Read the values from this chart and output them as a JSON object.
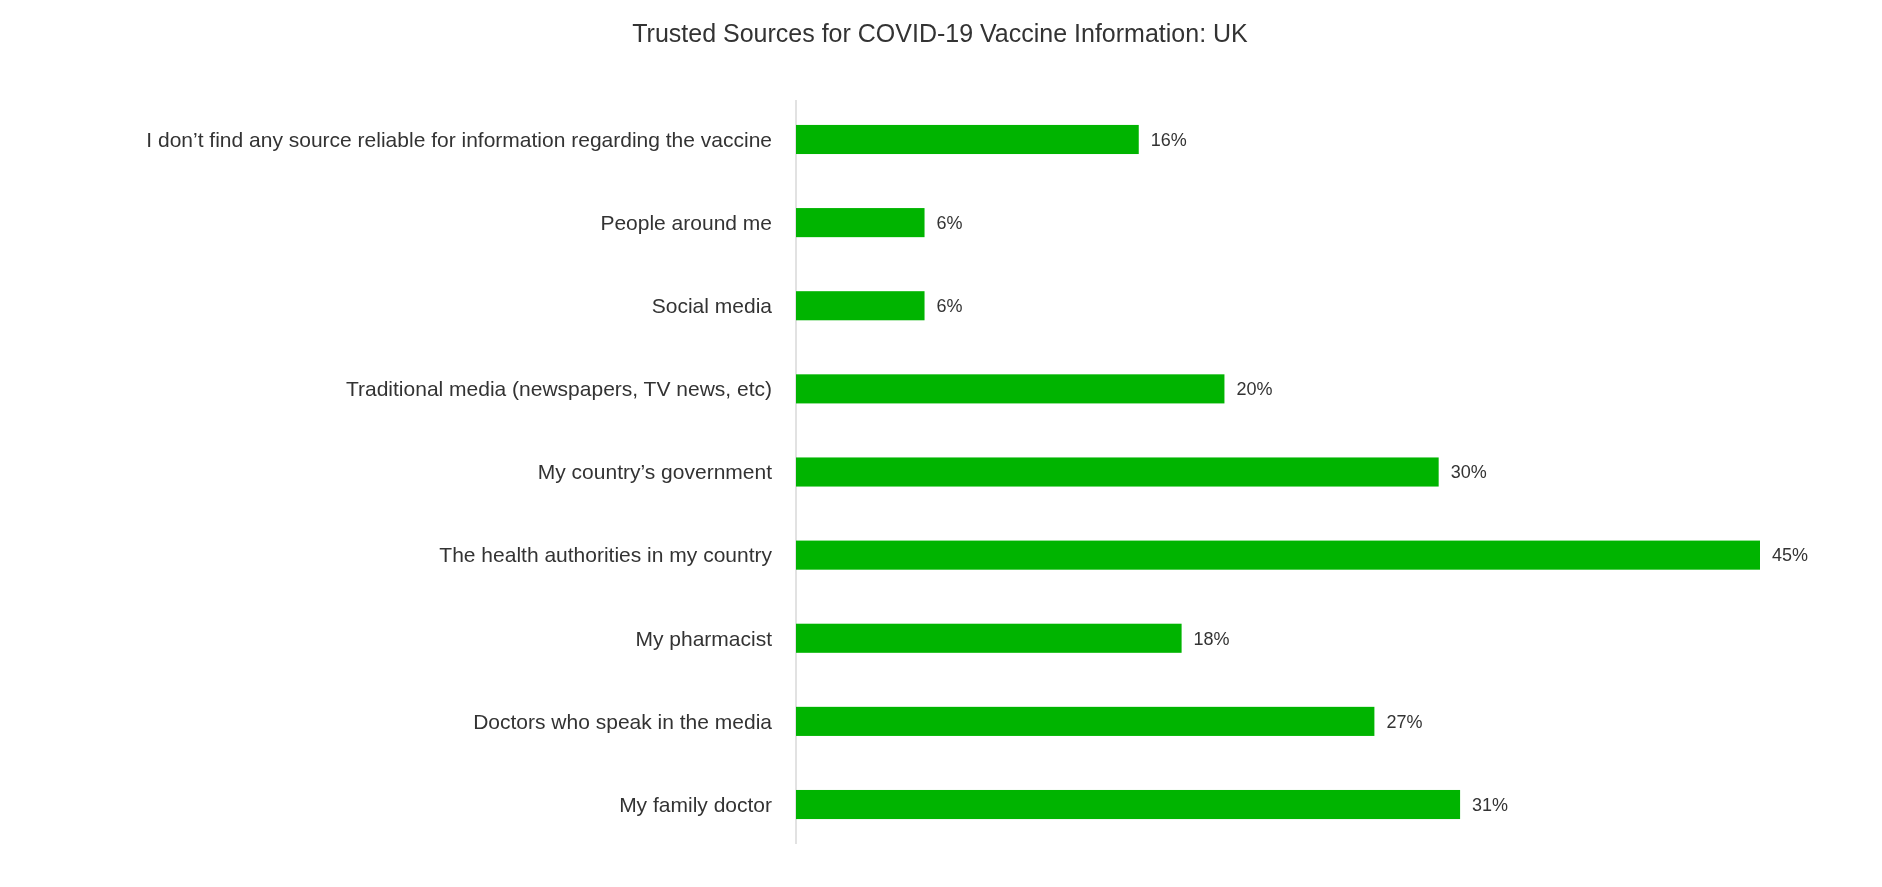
{
  "chart_data": {
    "type": "bar",
    "orientation": "horizontal",
    "title": "Trusted Sources for COVID-19 Vaccine Information: UK",
    "categories": [
      "I don’t find any source reliable for information regarding the vaccine",
      "People around me",
      "Social media",
      "Traditional media (newspapers, TV news, etc)",
      "My country’s government",
      "The health authorities in my country",
      "My pharmacist",
      "Doctors who speak in the media",
      "My family doctor"
    ],
    "values": [
      16,
      6,
      6,
      20,
      30,
      45,
      18,
      27,
      31
    ],
    "value_labels": [
      "16%",
      "6%",
      "6%",
      "20%",
      "30%",
      "45%",
      "18%",
      "27%",
      "31%"
    ],
    "color": "#00b400"
  }
}
